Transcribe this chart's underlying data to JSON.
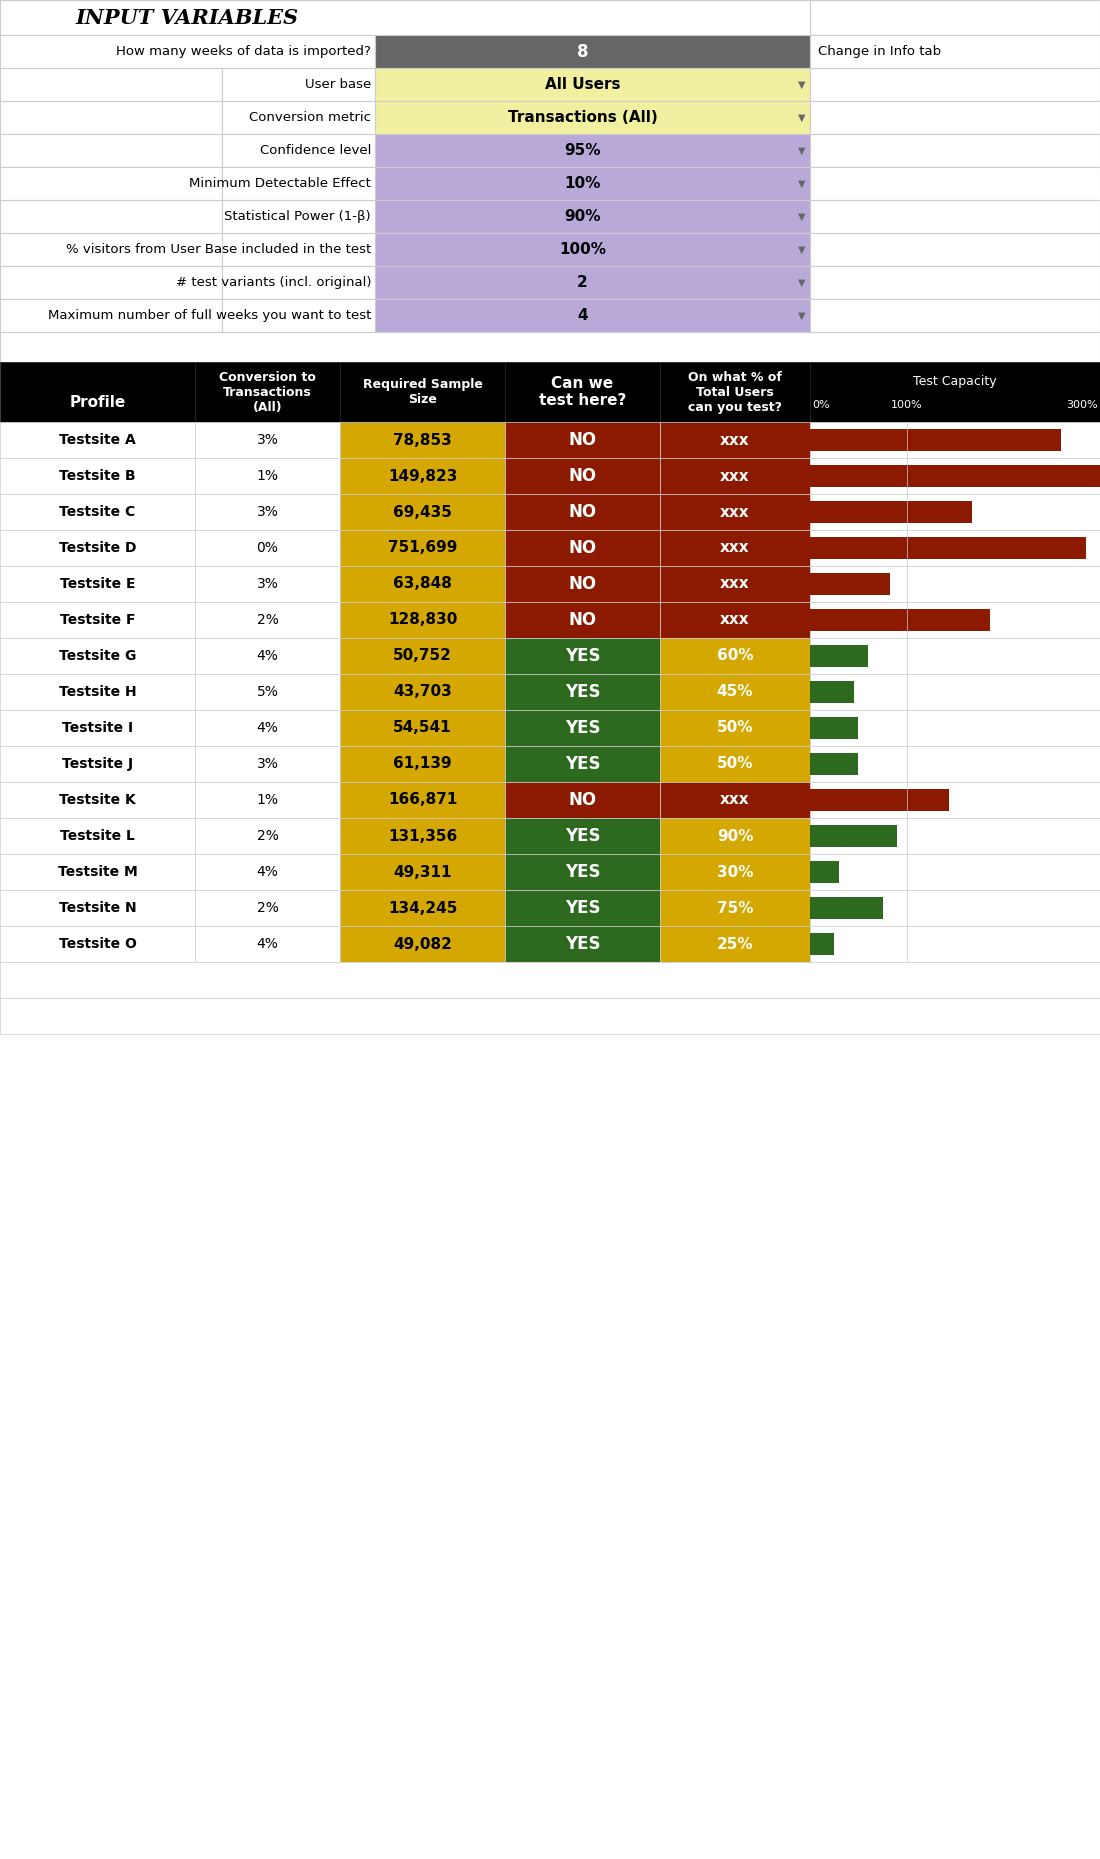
{
  "input_vars": {
    "title": "INPUT VARIABLES",
    "rows": [
      {
        "label": "How many weeks of data is imported?",
        "value": "8",
        "bg": "#666666",
        "text_color": "#ffffff",
        "indent": 0
      },
      {
        "label": "User base",
        "value": "All Users",
        "bg": "#f0f0a0",
        "text_color": "#000000",
        "indent": 1
      },
      {
        "label": "Conversion metric",
        "value": "Transactions (All)",
        "bg": "#f0f0a0",
        "text_color": "#000000",
        "indent": 1
      },
      {
        "label": "Confidence level",
        "value": "95%",
        "bg": "#b8a9d9",
        "text_color": "#000000",
        "indent": 1
      },
      {
        "label": "Minimum Detectable Effect",
        "value": "10%",
        "bg": "#b8a9d9",
        "text_color": "#000000",
        "indent": 1
      },
      {
        "label": "Statistical Power (1-β)",
        "value": "90%",
        "bg": "#b8a9d9",
        "text_color": "#000000",
        "indent": 1
      },
      {
        "label": "% visitors from User Base included in the test",
        "value": "100%",
        "bg": "#b8a9d9",
        "text_color": "#000000",
        "indent": 1
      },
      {
        "label": "# test variants (incl. original)",
        "value": "2",
        "bg": "#b8a9d9",
        "text_color": "#000000",
        "indent": 1
      },
      {
        "label": "Maximum number of full weeks you want to test",
        "value": "4",
        "bg": "#b8a9d9",
        "text_color": "#000000",
        "indent": 1
      }
    ],
    "extra_label": "Change in Info tab"
  },
  "table": {
    "capacity_labels": [
      "0%",
      "100%",
      "300%"
    ],
    "rows": [
      {
        "profile": "Testsite A",
        "conversion": "3%",
        "sample": "78,853",
        "can_test": "NO",
        "pct_users": "xxx",
        "capacity_pct": 260,
        "can_test_bg": "#8b1a00",
        "pct_bg": "#8b1a00"
      },
      {
        "profile": "Testsite B",
        "conversion": "1%",
        "sample": "149,823",
        "can_test": "NO",
        "pct_users": "xxx",
        "capacity_pct": 300,
        "can_test_bg": "#8b1a00",
        "pct_bg": "#8b1a00"
      },
      {
        "profile": "Testsite C",
        "conversion": "3%",
        "sample": "69,435",
        "can_test": "NO",
        "pct_users": "xxx",
        "capacity_pct": 168,
        "can_test_bg": "#8b1a00",
        "pct_bg": "#8b1a00"
      },
      {
        "profile": "Testsite D",
        "conversion": "0%",
        "sample": "751,699",
        "can_test": "NO",
        "pct_users": "xxx",
        "capacity_pct": 285,
        "can_test_bg": "#8b1a00",
        "pct_bg": "#8b1a00"
      },
      {
        "profile": "Testsite E",
        "conversion": "3%",
        "sample": "63,848",
        "can_test": "NO",
        "pct_users": "xxx",
        "capacity_pct": 83,
        "can_test_bg": "#8b1a00",
        "pct_bg": "#8b1a00"
      },
      {
        "profile": "Testsite F",
        "conversion": "2%",
        "sample": "128,830",
        "can_test": "NO",
        "pct_users": "xxx",
        "capacity_pct": 186,
        "can_test_bg": "#8b1a00",
        "pct_bg": "#8b1a00"
      },
      {
        "profile": "Testsite G",
        "conversion": "4%",
        "sample": "50,752",
        "can_test": "YES",
        "pct_users": "60%",
        "capacity_pct": 60,
        "can_test_bg": "#2d6a1f",
        "pct_bg": "#d4a800"
      },
      {
        "profile": "Testsite H",
        "conversion": "5%",
        "sample": "43,703",
        "can_test": "YES",
        "pct_users": "45%",
        "capacity_pct": 45,
        "can_test_bg": "#2d6a1f",
        "pct_bg": "#d4a800"
      },
      {
        "profile": "Testsite I",
        "conversion": "4%",
        "sample": "54,541",
        "can_test": "YES",
        "pct_users": "50%",
        "capacity_pct": 50,
        "can_test_bg": "#2d6a1f",
        "pct_bg": "#d4a800"
      },
      {
        "profile": "Testsite J",
        "conversion": "3%",
        "sample": "61,139",
        "can_test": "YES",
        "pct_users": "50%",
        "capacity_pct": 50,
        "can_test_bg": "#2d6a1f",
        "pct_bg": "#d4a800"
      },
      {
        "profile": "Testsite K",
        "conversion": "1%",
        "sample": "166,871",
        "can_test": "NO",
        "pct_users": "xxx",
        "capacity_pct": 144,
        "can_test_bg": "#8b1a00",
        "pct_bg": "#8b1a00"
      },
      {
        "profile": "Testsite L",
        "conversion": "2%",
        "sample": "131,356",
        "can_test": "YES",
        "pct_users": "90%",
        "capacity_pct": 90,
        "can_test_bg": "#2d6a1f",
        "pct_bg": "#d4a800"
      },
      {
        "profile": "Testsite M",
        "conversion": "4%",
        "sample": "49,311",
        "can_test": "YES",
        "pct_users": "30%",
        "capacity_pct": 30,
        "can_test_bg": "#2d6a1f",
        "pct_bg": "#d4a800"
      },
      {
        "profile": "Testsite N",
        "conversion": "2%",
        "sample": "134,245",
        "can_test": "YES",
        "pct_users": "75%",
        "capacity_pct": 75,
        "can_test_bg": "#2d6a1f",
        "pct_bg": "#d4a800"
      },
      {
        "profile": "Testsite O",
        "conversion": "4%",
        "sample": "49,082",
        "can_test": "YES",
        "pct_users": "25%",
        "capacity_pct": 25,
        "can_test_bg": "#2d6a1f",
        "pct_bg": "#d4a800"
      }
    ],
    "sample_bg": "#d4a800",
    "sample_text": "#000000"
  },
  "fig_width": 11.0,
  "fig_height": 18.59
}
